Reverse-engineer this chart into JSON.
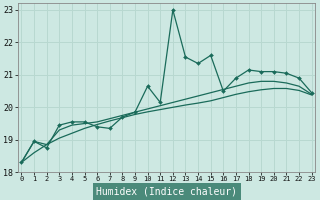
{
  "xlabel": "Humidex (Indice chaleur)",
  "bg_color": "#c8e8e0",
  "plot_bg": "#cce8e0",
  "grid_color": "#aad4cc",
  "line_color": "#1a6b5a",
  "xlabel_bg": "#5a9a8a",
  "xlim": [
    0,
    23
  ],
  "ylim": [
    18,
    23.2
  ],
  "yticks": [
    18,
    19,
    20,
    21,
    22,
    23
  ],
  "xticks": [
    0,
    1,
    2,
    3,
    4,
    5,
    6,
    7,
    8,
    9,
    10,
    11,
    12,
    13,
    14,
    15,
    16,
    17,
    18,
    19,
    20,
    21,
    22,
    23
  ],
  "x": [
    0,
    1,
    2,
    3,
    4,
    5,
    6,
    7,
    8,
    9,
    10,
    11,
    12,
    13,
    14,
    15,
    16,
    17,
    18,
    19,
    20,
    21,
    22,
    23
  ],
  "y_main": [
    18.3,
    18.95,
    18.75,
    19.45,
    19.55,
    19.55,
    19.4,
    19.35,
    19.7,
    19.85,
    20.65,
    20.15,
    23.0,
    21.55,
    21.35,
    21.6,
    20.5,
    20.9,
    21.15,
    21.1,
    21.1,
    21.05,
    20.9,
    20.45
  ],
  "y_smooth1": [
    18.3,
    18.95,
    18.85,
    19.3,
    19.45,
    19.5,
    19.55,
    19.65,
    19.75,
    19.85,
    19.95,
    20.05,
    20.15,
    20.25,
    20.35,
    20.45,
    20.55,
    20.65,
    20.75,
    20.8,
    20.8,
    20.75,
    20.65,
    20.4
  ],
  "y_smooth2": [
    18.3,
    18.6,
    18.85,
    19.05,
    19.2,
    19.35,
    19.47,
    19.58,
    19.68,
    19.78,
    19.86,
    19.93,
    20.0,
    20.07,
    20.13,
    20.2,
    20.3,
    20.4,
    20.48,
    20.54,
    20.58,
    20.58,
    20.52,
    20.38
  ]
}
